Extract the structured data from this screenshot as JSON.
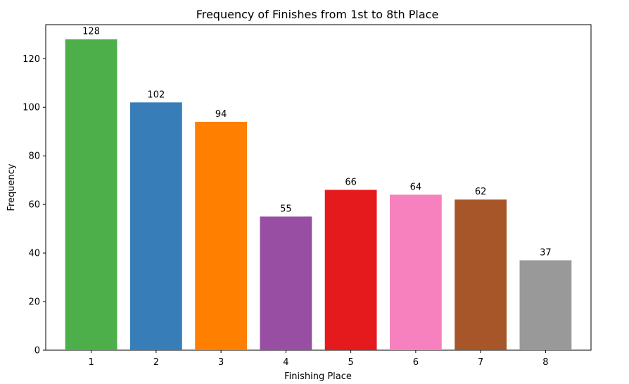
{
  "chart_data": {
    "type": "bar",
    "title": "Frequency of Finishes from 1st to 8th Place",
    "xlabel": "Finishing Place",
    "ylabel": "Frequency",
    "categories": [
      "1",
      "2",
      "3",
      "4",
      "5",
      "6",
      "7",
      "8"
    ],
    "values": [
      128,
      102,
      94,
      55,
      66,
      64,
      62,
      37
    ],
    "colors": [
      "#4daf4a",
      "#377eb8",
      "#ff7f00",
      "#984ea3",
      "#e41a1c",
      "#f781bf",
      "#a65628",
      "#999999"
    ],
    "ylim": [
      0,
      134
    ],
    "yticks": [
      0,
      20,
      40,
      60,
      80,
      100,
      120
    ],
    "grid": false,
    "data_labels": [
      "128",
      "102",
      "94",
      "55",
      "66",
      "64",
      "62",
      "37"
    ]
  }
}
